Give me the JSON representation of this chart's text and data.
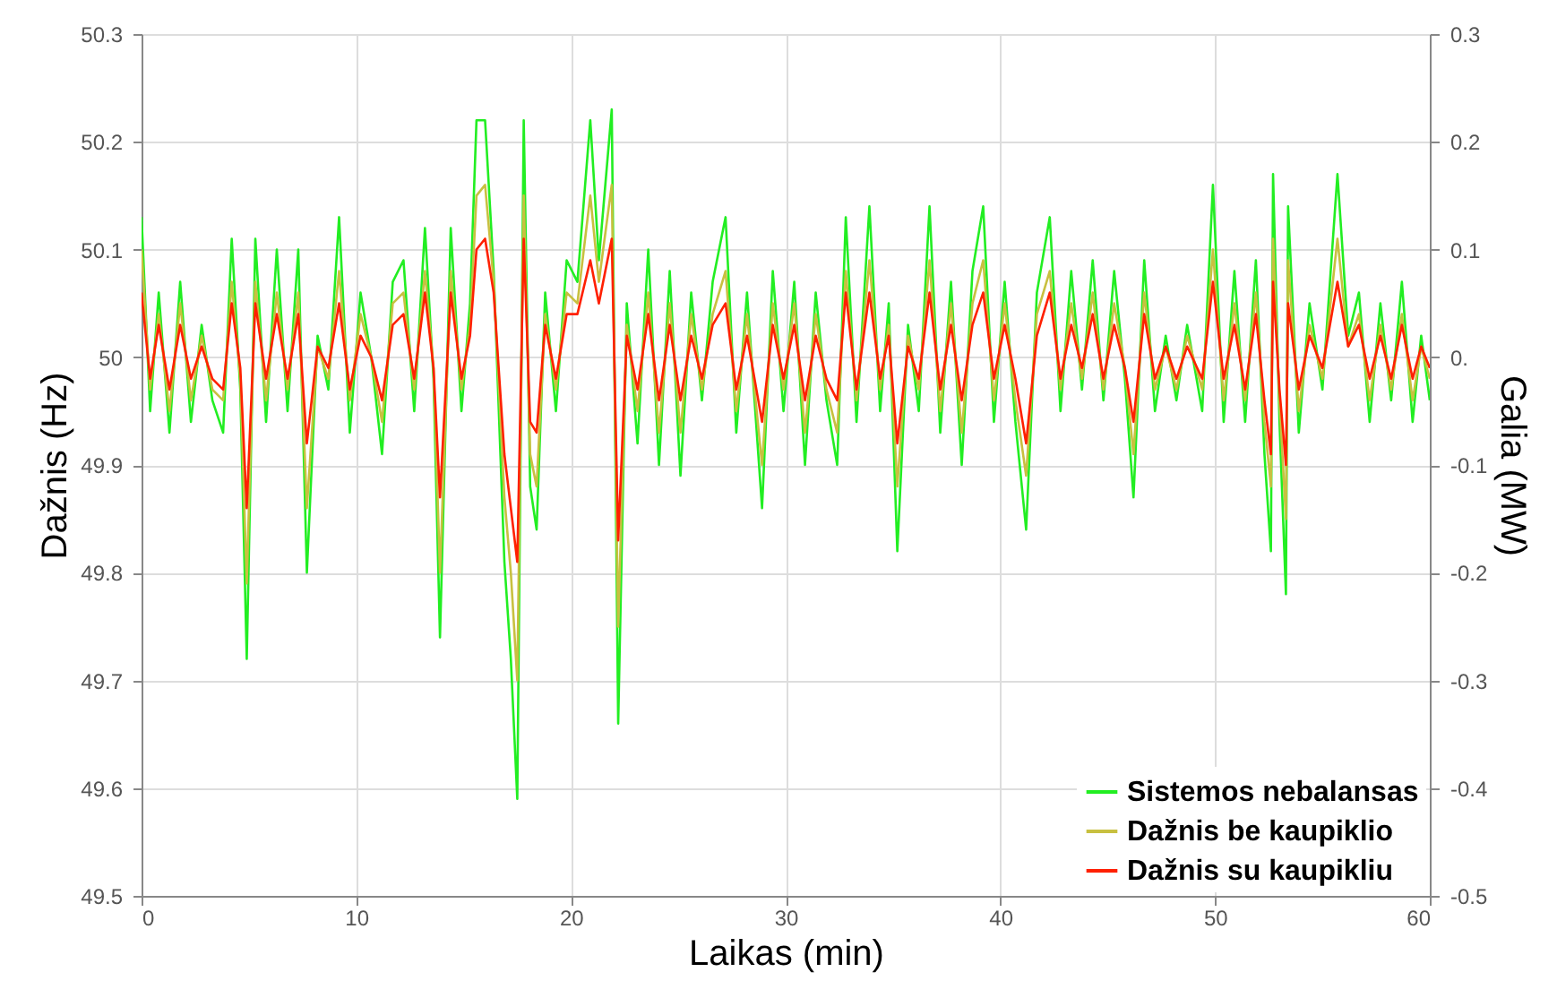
{
  "chart_data": {
    "type": "line",
    "xlabel": "Laikas (min)",
    "ylabel": "Dažnis (Hz)",
    "y2label": "Galia (MW)",
    "x": [
      0,
      0.4,
      0.8,
      1.3,
      1.8,
      2.3,
      2.8,
      3.3,
      3.8,
      4.2,
      4.6,
      4.9,
      5.3,
      5.8,
      6.3,
      6.8,
      7.3,
      7.7,
      8.2,
      8.7,
      9.2,
      9.7,
      10.2,
      10.7,
      11.2,
      11.7,
      12.2,
      12.7,
      13.2,
      13.6,
      13.9,
      14.4,
      14.9,
      15.3,
      15.6,
      16.0,
      16.4,
      16.9,
      17.2,
      17.5,
      17.8,
      18.1,
      18.4,
      18.8,
      19.3,
      19.8,
      20.3,
      20.9,
      21.3,
      21.9,
      22.2,
      22.6,
      23.1,
      23.6,
      24.1,
      24.6,
      25.1,
      25.6,
      26.1,
      26.6,
      27.2,
      27.7,
      28.2,
      28.9,
      29.4,
      29.9,
      30.4,
      30.9,
      31.4,
      31.9,
      32.4,
      32.8,
      33.3,
      33.9,
      34.4,
      34.8,
      35.2,
      35.7,
      36.2,
      36.7,
      37.2,
      37.7,
      38.2,
      38.7,
      39.2,
      39.7,
      40.2,
      40.7,
      41.2,
      41.7,
      42.3,
      42.8,
      43.3,
      43.8,
      44.3,
      44.8,
      45.3,
      45.8,
      46.2,
      46.7,
      47.2,
      47.7,
      48.2,
      48.7,
      49.4,
      49.9,
      50.4,
      50.9,
      51.4,
      51.9,
      52.3,
      52.6,
      52.7,
      53.0,
      53.3,
      53.4,
      53.9,
      54.4,
      55.0,
      55.7,
      56.2,
      56.7,
      57.2,
      57.7,
      58.2,
      58.7,
      59.2,
      59.6,
      60
    ],
    "series": [
      {
        "name": "Sistemos nebalansas",
        "color": "#22ee22",
        "axis": "y2",
        "values": [
          0.13,
          -0.05,
          0.06,
          -0.07,
          0.07,
          -0.06,
          0.03,
          -0.04,
          -0.07,
          0.11,
          -0.03,
          -0.28,
          0.11,
          -0.06,
          0.1,
          -0.05,
          0.1,
          -0.2,
          0.02,
          -0.03,
          0.13,
          -0.07,
          0.06,
          0.0,
          -0.09,
          0.07,
          0.09,
          -0.05,
          0.12,
          -0.02,
          -0.26,
          0.12,
          -0.05,
          0.05,
          0.22,
          0.22,
          0.08,
          -0.19,
          -0.28,
          -0.41,
          0.22,
          -0.12,
          -0.16,
          0.06,
          -0.05,
          0.09,
          0.07,
          0.22,
          0.09,
          0.23,
          -0.34,
          0.05,
          -0.08,
          0.1,
          -0.1,
          0.08,
          -0.11,
          0.06,
          -0.04,
          0.07,
          0.13,
          -0.07,
          0.06,
          -0.14,
          0.08,
          -0.05,
          0.07,
          -0.1,
          0.06,
          -0.04,
          -0.1,
          0.13,
          -0.06,
          0.14,
          -0.05,
          0.05,
          -0.18,
          0.03,
          -0.05,
          0.14,
          -0.07,
          0.07,
          -0.1,
          0.08,
          0.14,
          -0.06,
          0.07,
          -0.06,
          -0.16,
          0.06,
          0.13,
          -0.05,
          0.08,
          -0.03,
          0.09,
          -0.04,
          0.08,
          -0.02,
          -0.13,
          0.09,
          -0.05,
          0.02,
          -0.04,
          0.03,
          -0.05,
          0.16,
          -0.06,
          0.08,
          -0.06,
          0.09,
          -0.09,
          -0.18,
          0.17,
          -0.06,
          -0.22,
          0.14,
          -0.07,
          0.05,
          -0.03,
          0.17,
          0.02,
          0.06,
          -0.06,
          0.05,
          -0.04,
          0.07,
          -0.06,
          0.02,
          -0.04
        ]
      },
      {
        "name": "Dažnis be kaupiklio",
        "color": "#c8c040",
        "values": [
          50.1,
          49.97,
          50.04,
          49.95,
          50.05,
          49.96,
          50.02,
          49.97,
          49.96,
          50.07,
          49.98,
          49.79,
          50.07,
          49.96,
          50.06,
          49.97,
          50.06,
          49.86,
          50.01,
          49.98,
          50.08,
          49.96,
          50.04,
          50.0,
          49.94,
          50.05,
          50.06,
          49.97,
          50.08,
          49.99,
          49.8,
          50.08,
          49.97,
          50.03,
          50.15,
          50.16,
          50.07,
          49.87,
          49.8,
          49.7,
          50.15,
          49.91,
          49.88,
          50.04,
          49.97,
          50.06,
          50.05,
          50.15,
          50.07,
          50.16,
          49.75,
          50.03,
          49.95,
          50.06,
          49.93,
          50.05,
          49.93,
          50.04,
          49.97,
          50.04,
          50.08,
          49.95,
          50.04,
          49.9,
          50.05,
          49.97,
          50.05,
          49.93,
          50.04,
          49.97,
          49.93,
          50.08,
          49.96,
          50.09,
          49.97,
          50.03,
          49.88,
          50.02,
          49.97,
          50.09,
          49.95,
          50.05,
          49.93,
          50.05,
          50.09,
          49.96,
          50.05,
          49.96,
          49.89,
          50.04,
          50.08,
          49.97,
          50.05,
          49.98,
          50.06,
          49.97,
          50.05,
          49.99,
          49.91,
          50.06,
          49.97,
          50.01,
          49.97,
          50.02,
          49.97,
          50.1,
          49.96,
          50.05,
          49.96,
          50.06,
          49.94,
          49.88,
          50.11,
          49.96,
          49.85,
          50.09,
          49.95,
          50.03,
          49.98,
          50.11,
          50.01,
          50.04,
          49.96,
          50.03,
          49.97,
          50.04,
          49.96,
          50.01,
          49.98
        ]
      },
      {
        "name": "Dažnis su kaupikliu",
        "color": "#ff2000",
        "values": [
          50.06,
          49.98,
          50.03,
          49.97,
          50.03,
          49.98,
          50.01,
          49.98,
          49.97,
          50.05,
          49.99,
          49.86,
          50.05,
          49.98,
          50.04,
          49.98,
          50.04,
          49.92,
          50.01,
          49.99,
          50.05,
          49.97,
          50.02,
          50.0,
          49.96,
          50.03,
          50.04,
          49.98,
          50.06,
          49.99,
          49.87,
          50.06,
          49.98,
          50.02,
          50.1,
          50.11,
          50.06,
          49.91,
          49.86,
          49.81,
          50.11,
          49.94,
          49.93,
          50.03,
          49.98,
          50.04,
          50.04,
          50.09,
          50.05,
          50.11,
          49.83,
          50.02,
          49.97,
          50.04,
          49.96,
          50.03,
          49.96,
          50.02,
          49.98,
          50.03,
          50.05,
          49.97,
          50.02,
          49.94,
          50.03,
          49.98,
          50.03,
          49.96,
          50.02,
          49.98,
          49.96,
          50.06,
          49.97,
          50.06,
          49.98,
          50.02,
          49.92,
          50.01,
          49.98,
          50.06,
          49.97,
          50.03,
          49.96,
          50.03,
          50.06,
          49.98,
          50.03,
          49.98,
          49.92,
          50.02,
          50.06,
          49.98,
          50.03,
          49.99,
          50.04,
          49.98,
          50.03,
          49.99,
          49.94,
          50.04,
          49.98,
          50.01,
          49.98,
          50.01,
          49.98,
          50.07,
          49.98,
          50.03,
          49.97,
          50.04,
          49.96,
          49.91,
          50.07,
          49.97,
          49.9,
          50.05,
          49.97,
          50.02,
          49.99,
          50.07,
          50.01,
          50.03,
          49.98,
          50.02,
          49.98,
          50.03,
          49.98,
          50.01,
          49.99
        ]
      }
    ],
    "xlim": [
      0,
      60
    ],
    "xticks": [
      0,
      10,
      20,
      30,
      40,
      50,
      60
    ],
    "ylim": [
      49.5,
      50.3
    ],
    "yticks": [
      49.5,
      49.6,
      49.7,
      49.8,
      49.9,
      50,
      50.1,
      50.2,
      50.3
    ],
    "y2lim": [
      -0.5,
      0.3
    ],
    "y2ticks": [
      -0.5,
      -0.4,
      -0.3,
      -0.2,
      -0.1,
      {
        "value": 0,
        "label": "0."
      },
      0.1,
      0.2,
      0.3
    ],
    "grid": true,
    "legend": "bottom right",
    "marker": "none",
    "line_style": "solid"
  }
}
